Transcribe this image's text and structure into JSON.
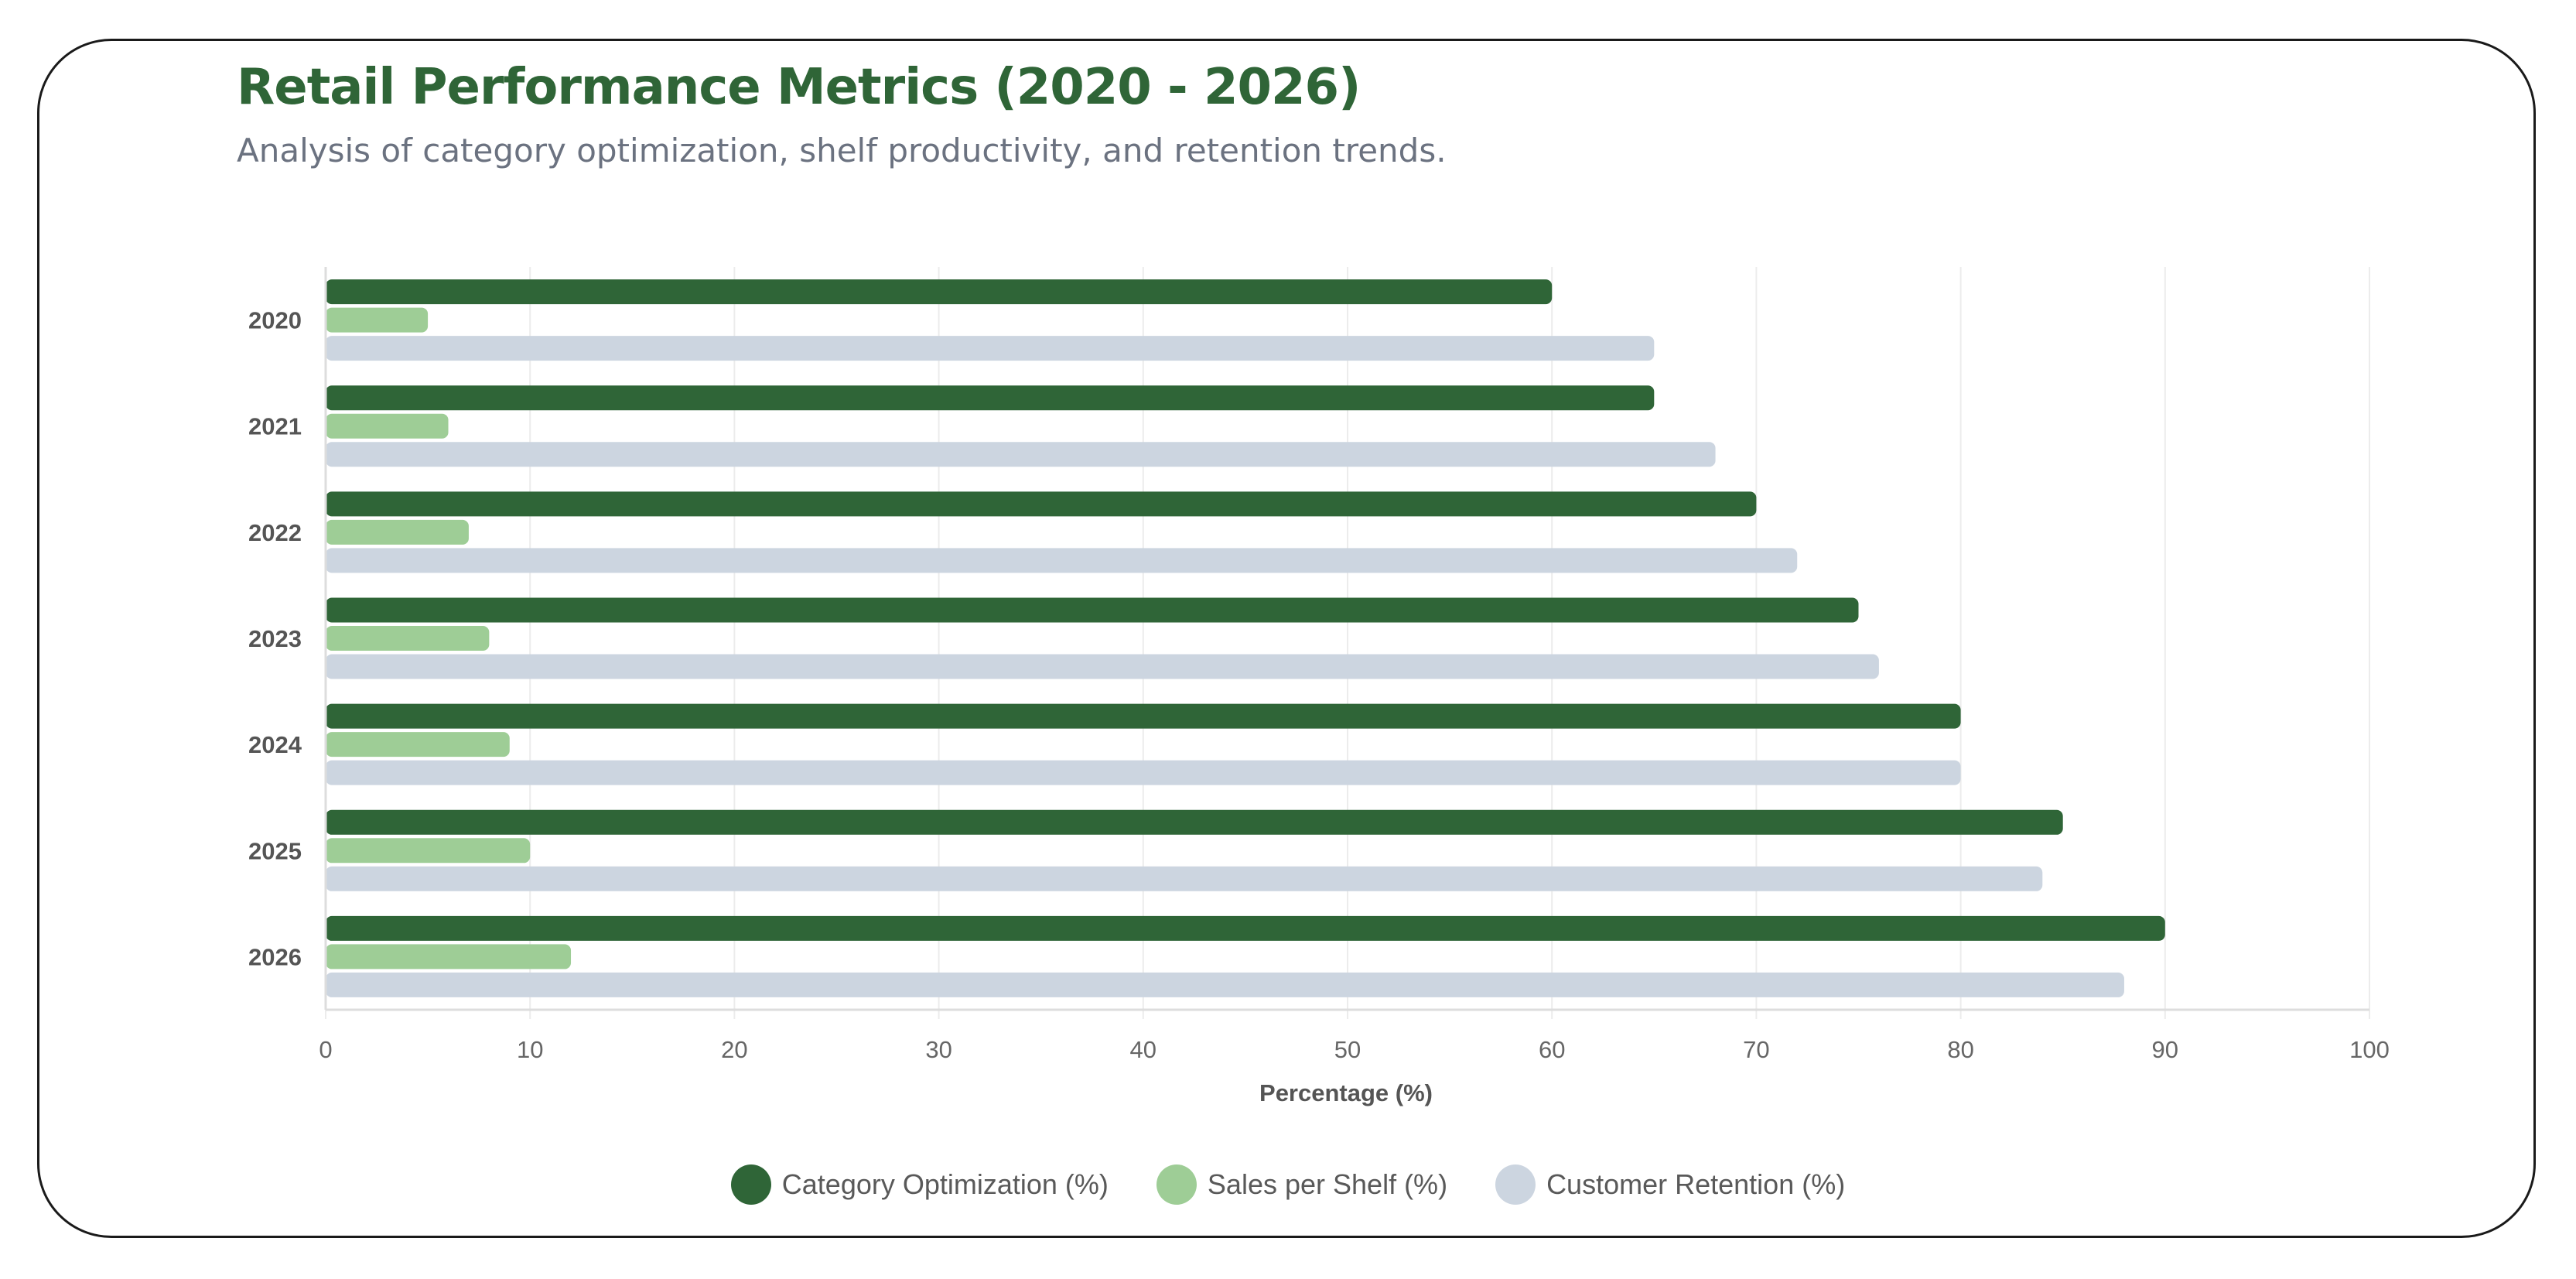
{
  "header": {
    "title": "Retail Performance Metrics (2020 - 2026)",
    "subtitle": "Analysis of category optimization, shelf productivity, and retention trends."
  },
  "chart_data": {
    "type": "bar",
    "orientation": "horizontal",
    "categories": [
      "2020",
      "2021",
      "2022",
      "2023",
      "2024",
      "2025",
      "2026"
    ],
    "series": [
      {
        "name": "Category Optimization (%)",
        "color": "#2f6537",
        "values": [
          60,
          65,
          70,
          75,
          80,
          85,
          90
        ]
      },
      {
        "name": "Sales per Shelf (%)",
        "color": "#9ecd96",
        "values": [
          5,
          6,
          7,
          8,
          9,
          10,
          12
        ]
      },
      {
        "name": "Customer Retention (%)",
        "color": "#ccd5e0",
        "values": [
          65,
          68,
          72,
          76,
          80,
          84,
          88
        ]
      }
    ],
    "xlabel": "Percentage (%)",
    "ylabel": "",
    "xlim": [
      0,
      100
    ],
    "xticks": [
      "0",
      "10",
      "20",
      "30",
      "40",
      "50",
      "60",
      "70",
      "80",
      "90",
      "100"
    ],
    "grid": true,
    "legend_position": "bottom"
  }
}
